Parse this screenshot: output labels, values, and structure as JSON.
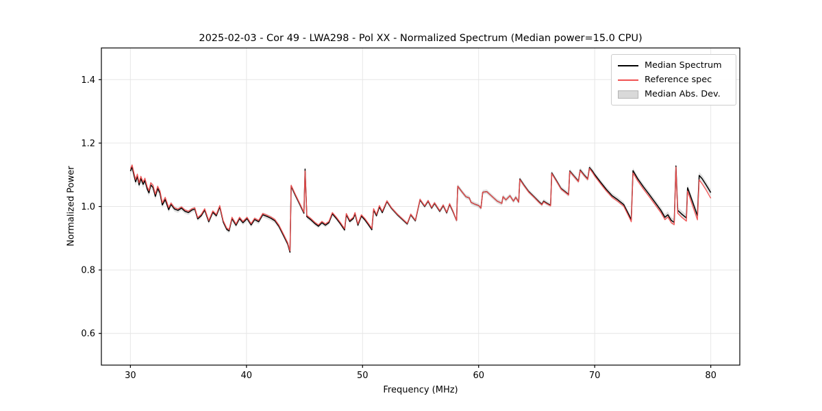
{
  "chart_data": {
    "type": "line",
    "title": "2025-02-03 - Cor 49 - LWA298 - Pol XX - Normalized Spectrum (Median power=15.0 CPU)",
    "xlabel": "Frequency (MHz)",
    "ylabel": "Normalized Power",
    "xlim": [
      27.5,
      82.5
    ],
    "ylim": [
      0.5,
      1.5
    ],
    "x_ticks": [
      30,
      40,
      50,
      60,
      70,
      80
    ],
    "y_ticks": [
      0.6,
      0.8,
      1.0,
      1.2,
      1.4
    ],
    "y_tick_labels": [
      "0.6",
      "0.8",
      "1.0",
      "1.2",
      "1.4"
    ],
    "grid": true,
    "legend_position": "upper right",
    "colors": {
      "median": "#000000",
      "reference": "#f05050",
      "band_fill": "#cfcfcf",
      "band_edge": "#b3b3b3",
      "grid": "#e6e6e6",
      "spine": "#000000"
    },
    "legend": {
      "entries": [
        {
          "label": "Median Spectrum",
          "type": "line",
          "color": "#000000"
        },
        {
          "label": "Reference spec",
          "type": "line",
          "color": "#f05050"
        },
        {
          "label": "Median Abs. Dev.",
          "type": "patch",
          "color": "#d9d9d9"
        }
      ]
    },
    "x": [
      30.0,
      30.15,
      30.3,
      30.45,
      30.6,
      30.75,
      30.9,
      31.1,
      31.25,
      31.45,
      31.6,
      31.75,
      31.95,
      32.15,
      32.35,
      32.55,
      32.75,
      33.0,
      33.3,
      33.5,
      33.8,
      34.1,
      34.4,
      34.7,
      35.0,
      35.3,
      35.55,
      35.8,
      36.1,
      36.4,
      36.75,
      37.1,
      37.4,
      37.7,
      38.0,
      38.3,
      38.5,
      38.75,
      39.1,
      39.4,
      39.7,
      40.05,
      40.4,
      40.7,
      41.05,
      41.4,
      41.75,
      42.1,
      42.45,
      42.8,
      43.2,
      43.55,
      43.75,
      43.85,
      44.2,
      44.6,
      44.95,
      45.05,
      45.2,
      45.55,
      45.9,
      46.2,
      46.5,
      46.8,
      47.1,
      47.4,
      47.75,
      48.1,
      48.45,
      48.6,
      48.9,
      49.2,
      49.35,
      49.6,
      49.9,
      50.2,
      50.5,
      50.8,
      50.95,
      51.2,
      51.45,
      51.7,
      52.1,
      52.5,
      53.0,
      53.5,
      53.85,
      54.15,
      54.55,
      54.95,
      55.35,
      55.65,
      55.95,
      56.2,
      56.65,
      56.95,
      57.25,
      57.5,
      57.8,
      58.1,
      58.2,
      58.55,
      58.9,
      59.2,
      59.35,
      59.7,
      60.0,
      60.2,
      60.35,
      60.7,
      61.0,
      61.6,
      62.0,
      62.1,
      62.35,
      62.7,
      63.0,
      63.2,
      63.45,
      63.55,
      63.9,
      64.3,
      64.8,
      65.2,
      65.45,
      65.6,
      65.9,
      66.2,
      66.3,
      66.7,
      67.1,
      67.45,
      67.75,
      67.85,
      68.2,
      68.6,
      68.75,
      69.1,
      69.4,
      69.55,
      69.8,
      70.0,
      70.5,
      71.0,
      71.5,
      72.0,
      72.5,
      73.0,
      73.15,
      73.3,
      73.7,
      74.2,
      74.7,
      75.2,
      75.7,
      76.05,
      76.3,
      76.6,
      76.85,
      77.0,
      77.15,
      77.5,
      77.9,
      78.0,
      78.4,
      78.85,
      79.0,
      79.25,
      79.6,
      80.0
    ],
    "series": [
      {
        "name": "Median Spectrum",
        "values": [
          1.112,
          1.124,
          1.1,
          1.078,
          1.095,
          1.068,
          1.088,
          1.07,
          1.082,
          1.055,
          1.043,
          1.068,
          1.06,
          1.032,
          1.057,
          1.042,
          1.005,
          1.022,
          0.99,
          1.007,
          0.992,
          0.988,
          0.995,
          0.985,
          0.981,
          0.989,
          0.992,
          0.961,
          0.971,
          0.989,
          0.952,
          0.982,
          0.971,
          0.999,
          0.951,
          0.928,
          0.923,
          0.962,
          0.941,
          0.962,
          0.949,
          0.962,
          0.942,
          0.959,
          0.952,
          0.974,
          0.969,
          0.963,
          0.955,
          0.937,
          0.908,
          0.882,
          0.856,
          1.064,
          1.036,
          1.006,
          0.979,
          1.118,
          0.968,
          0.958,
          0.946,
          0.938,
          0.949,
          0.941,
          0.949,
          0.977,
          0.962,
          0.945,
          0.926,
          0.974,
          0.953,
          0.962,
          0.977,
          0.941,
          0.97,
          0.958,
          0.943,
          0.927,
          0.989,
          0.971,
          0.999,
          0.981,
          1.016,
          0.994,
          0.974,
          0.957,
          0.945,
          0.974,
          0.955,
          1.021,
          1.0,
          1.017,
          0.995,
          1.01,
          0.985,
          1.003,
          0.98,
          1.007,
          0.983,
          0.956,
          1.064,
          1.047,
          1.031,
          1.027,
          1.013,
          1.007,
          1.003,
          0.995,
          1.045,
          1.047,
          1.037,
          1.017,
          1.01,
          1.031,
          1.021,
          1.034,
          1.017,
          1.029,
          1.014,
          1.087,
          1.068,
          1.048,
          1.03,
          1.015,
          1.007,
          1.017,
          1.01,
          1.004,
          1.106,
          1.082,
          1.057,
          1.047,
          1.038,
          1.112,
          1.097,
          1.08,
          1.115,
          1.099,
          1.087,
          1.123,
          1.112,
          1.101,
          1.077,
          1.054,
          1.034,
          1.021,
          1.006,
          0.97,
          0.958,
          1.113,
          1.088,
          1.062,
          1.038,
          1.013,
          0.988,
          0.966,
          0.974,
          0.956,
          0.95,
          1.128,
          0.988,
          0.976,
          0.964,
          1.059,
          1.018,
          0.971,
          1.098,
          1.088,
          1.068,
          1.044
        ]
      },
      {
        "name": "Reference spec",
        "values": [
          1.119,
          1.131,
          1.107,
          1.085,
          1.102,
          1.075,
          1.095,
          1.077,
          1.089,
          1.062,
          1.05,
          1.075,
          1.067,
          1.039,
          1.064,
          1.049,
          1.012,
          1.029,
          0.997,
          1.011,
          0.996,
          0.992,
          0.999,
          0.989,
          0.985,
          0.993,
          0.996,
          0.965,
          0.975,
          0.993,
          0.956,
          0.986,
          0.975,
          1.003,
          0.955,
          0.932,
          0.927,
          0.966,
          0.945,
          0.966,
          0.953,
          0.966,
          0.946,
          0.963,
          0.956,
          0.978,
          0.973,
          0.967,
          0.959,
          0.941,
          0.912,
          0.886,
          0.86,
          1.067,
          1.039,
          1.009,
          0.982,
          1.112,
          0.972,
          0.962,
          0.95,
          0.942,
          0.953,
          0.945,
          0.953,
          0.981,
          0.966,
          0.949,
          0.93,
          0.978,
          0.957,
          0.966,
          0.981,
          0.945,
          0.974,
          0.962,
          0.947,
          0.931,
          0.993,
          0.975,
          1.003,
          0.985,
          1.018,
          0.996,
          0.976,
          0.959,
          0.947,
          0.976,
          0.957,
          1.023,
          1.002,
          1.019,
          0.997,
          1.012,
          0.987,
          1.005,
          0.982,
          1.009,
          0.985,
          0.956,
          1.064,
          1.047,
          1.031,
          1.027,
          1.013,
          1.007,
          1.003,
          0.995,
          1.045,
          1.047,
          1.037,
          1.017,
          1.01,
          1.031,
          1.021,
          1.034,
          1.017,
          1.029,
          1.014,
          1.085,
          1.066,
          1.046,
          1.028,
          1.013,
          1.005,
          1.015,
          1.008,
          1.002,
          1.104,
          1.08,
          1.055,
          1.045,
          1.036,
          1.11,
          1.095,
          1.078,
          1.113,
          1.097,
          1.085,
          1.12,
          1.108,
          1.096,
          1.072,
          1.049,
          1.029,
          1.016,
          1.001,
          0.964,
          0.952,
          1.106,
          1.081,
          1.055,
          1.031,
          1.006,
          0.981,
          0.959,
          0.967,
          0.949,
          0.943,
          1.124,
          0.979,
          0.966,
          0.954,
          1.049,
          1.006,
          0.958,
          1.084,
          1.072,
          1.052,
          1.026
        ]
      }
    ],
    "mad_band_halfwidth_breakpoints": [
      [
        27.5,
        0.012
      ],
      [
        30.0,
        0.012
      ],
      [
        32.5,
        0.01
      ],
      [
        34.0,
        0.008
      ],
      [
        36.0,
        0.007
      ],
      [
        43.5,
        0.008
      ],
      [
        44.5,
        0.007
      ],
      [
        50.0,
        0.006
      ],
      [
        55.0,
        0.006
      ],
      [
        58.0,
        0.007
      ],
      [
        66.0,
        0.007
      ],
      [
        70.0,
        0.008
      ],
      [
        74.0,
        0.009
      ],
      [
        77.0,
        0.011
      ],
      [
        82.5,
        0.011
      ]
    ]
  }
}
